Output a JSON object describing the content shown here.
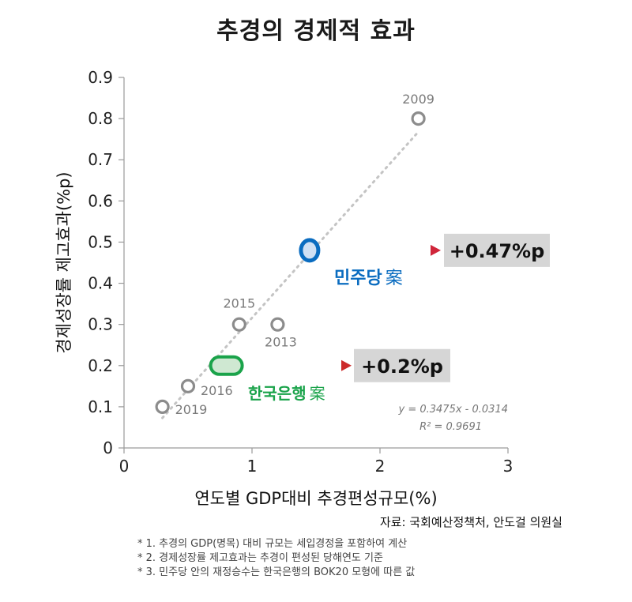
{
  "title": "추경의 경제적 효과",
  "source": "자료: 국회예산정책처, 안도걸 의원실",
  "notes": [
    "* 1. 추경의 GDP(명목) 대비 규모는 세입경정을 포함하여 계산",
    "* 2. 경제성장률 제고효과는 추경이 편성된 당해연도 기준",
    "* 3. 민주당 안의 재정승수는 한국은행의 BOK20 모형에 따른 값"
  ],
  "chart_data": {
    "type": "scatter",
    "xlabel": "연도별 GDP대비 추경편성규모(%)",
    "ylabel": "경제성장률 제고효과(%p)",
    "xlim": [
      0,
      3
    ],
    "ylim": [
      0,
      0.9
    ],
    "xticks": [
      "0",
      "1",
      "2",
      "3"
    ],
    "yticks": [
      "0",
      "0.1",
      "0.2",
      "0.3",
      "0.4",
      "0.5",
      "0.6",
      "0.7",
      "0.8",
      "0.9"
    ],
    "grid": false,
    "points": [
      {
        "label": "2019",
        "x": 0.3,
        "y": 0.1
      },
      {
        "label": "2016",
        "x": 0.5,
        "y": 0.15
      },
      {
        "label": "2015",
        "x": 0.9,
        "y": 0.3
      },
      {
        "label": "2013",
        "x": 1.2,
        "y": 0.3
      },
      {
        "label": "2009",
        "x": 2.3,
        "y": 0.8
      }
    ],
    "trendline": {
      "slope": 0.3475,
      "intercept": -0.0314,
      "x_range": [
        0.3,
        2.3
      ],
      "equation": "y = 0.3475x - 0.0314",
      "r2": "R² = 0.9691"
    },
    "annotations": [
      {
        "name": "한국은행",
        "suffix": "案",
        "x": 0.8,
        "y": 0.2,
        "value": "+0.2%p",
        "color": "#1aa34a"
      },
      {
        "name": "민주당",
        "suffix": "案",
        "x": 1.45,
        "y": 0.48,
        "value": "+0.47%p",
        "color": "#0a6cc0"
      }
    ]
  }
}
